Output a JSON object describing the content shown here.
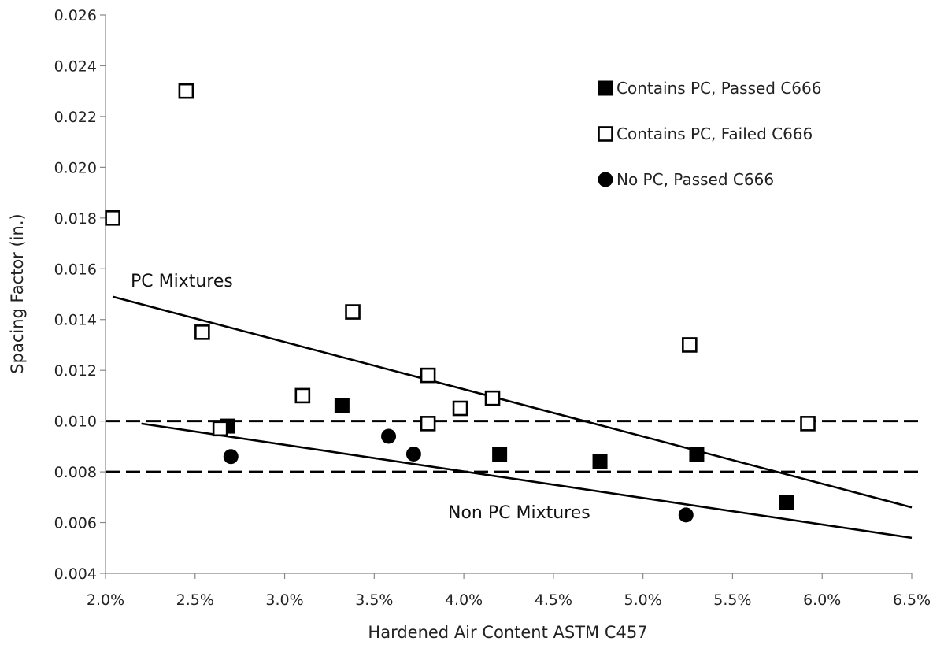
{
  "chart_data": {
    "type": "scatter",
    "xlabel": "Hardened Air Content ASTM C457",
    "ylabel": "Spacing Factor (in.)",
    "xlim": [
      0.02,
      0.065
    ],
    "ylim": [
      0.004,
      0.026
    ],
    "x_ticks": [
      0.02,
      0.025,
      0.03,
      0.035,
      0.04,
      0.045,
      0.05,
      0.055,
      0.06,
      0.065
    ],
    "x_tick_labels": [
      "2.0%",
      "2.5%",
      "3.0%",
      "3.5%",
      "4.0%",
      "4.5%",
      "5.0%",
      "5.5%",
      "6.0%",
      "6.5%"
    ],
    "y_ticks": [
      0.004,
      0.006,
      0.008,
      0.01,
      0.012,
      0.014,
      0.016,
      0.018,
      0.02,
      0.022,
      0.024,
      0.026
    ],
    "y_tick_labels": [
      "0.004",
      "0.006",
      "0.008",
      "0.010",
      "0.012",
      "0.014",
      "0.016",
      "0.018",
      "0.020",
      "0.022",
      "0.024",
      "0.026"
    ],
    "grid": false,
    "legend_position": "top-right",
    "series": [
      {
        "name": "Contains PC, Passed C666",
        "marker": "filled-square",
        "color": "#000000",
        "points": [
          [
            0.0268,
            0.0098
          ],
          [
            0.0332,
            0.0106
          ],
          [
            0.042,
            0.0087
          ],
          [
            0.0476,
            0.0084
          ],
          [
            0.053,
            0.0087
          ],
          [
            0.058,
            0.0068
          ]
        ]
      },
      {
        "name": "Contains PC, Failed C666",
        "marker": "open-square",
        "color": "#000000",
        "points": [
          [
            0.0204,
            0.018
          ],
          [
            0.0245,
            0.023
          ],
          [
            0.0254,
            0.0135
          ],
          [
            0.031,
            0.011
          ],
          [
            0.0338,
            0.0143
          ],
          [
            0.038,
            0.0118
          ],
          [
            0.038,
            0.0099
          ],
          [
            0.0398,
            0.0105
          ],
          [
            0.0416,
            0.0109
          ],
          [
            0.0526,
            0.013
          ],
          [
            0.0592,
            0.0099
          ],
          [
            0.0264,
            0.0097
          ]
        ]
      },
      {
        "name": "No PC, Passed C666",
        "marker": "filled-circle",
        "color": "#000000",
        "points": [
          [
            0.027,
            0.0086
          ],
          [
            0.0358,
            0.0094
          ],
          [
            0.0372,
            0.0087
          ],
          [
            0.0524,
            0.0063
          ]
        ]
      }
    ],
    "trendlines": [
      {
        "label": "PC Mixtures",
        "from": [
          0.0204,
          0.0149
        ],
        "to": [
          0.065,
          0.0066
        ]
      },
      {
        "label": "Non PC Mixtures",
        "from": [
          0.022,
          0.0099
        ],
        "to": [
          0.065,
          0.0054
        ]
      }
    ],
    "reference_lines": [
      0.01,
      0.008
    ],
    "annotations": [
      "PC Mixtures",
      "Non PC Mixtures"
    ]
  }
}
